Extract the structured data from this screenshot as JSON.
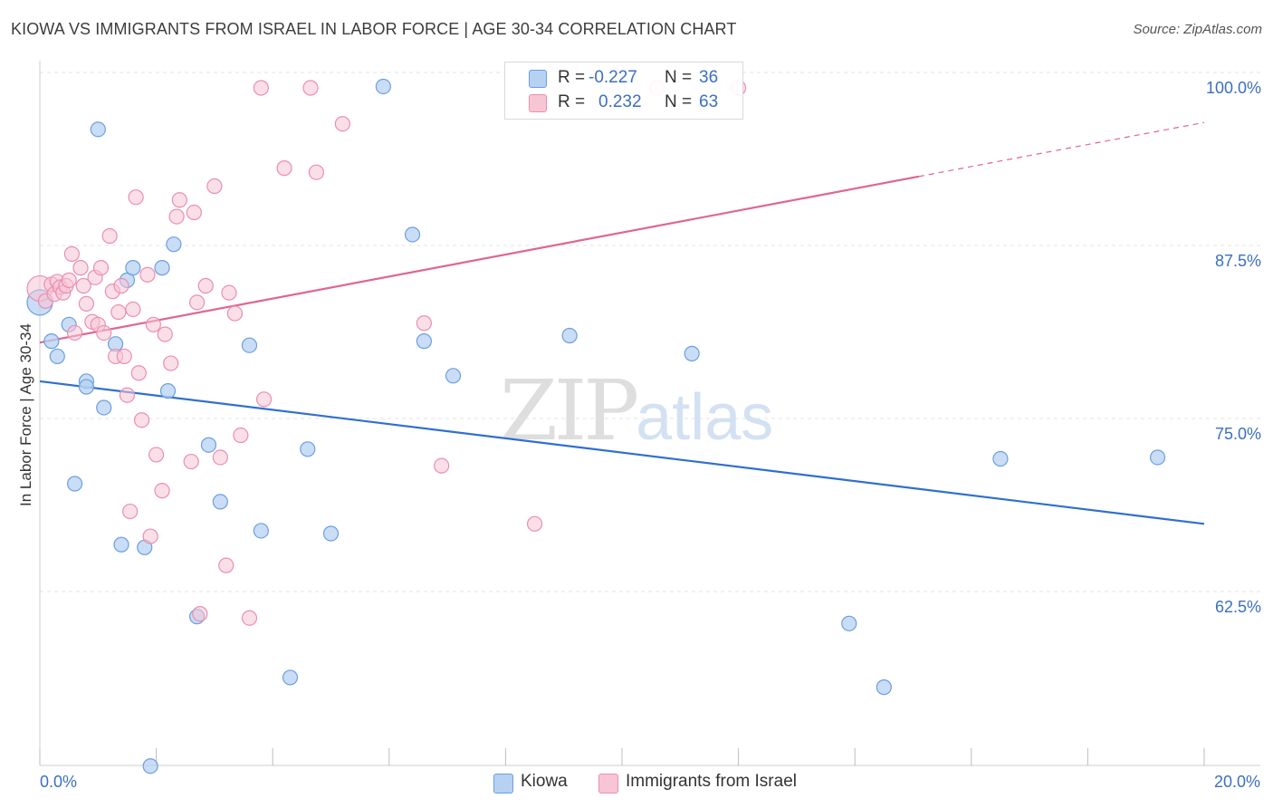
{
  "title": "KIOWA VS IMMIGRANTS FROM ISRAEL IN LABOR FORCE | AGE 30-34 CORRELATION CHART",
  "source": "Source: ZipAtlas.com",
  "watermark": {
    "zip": "ZIP",
    "atlas": "atlas"
  },
  "legend": {
    "kiowa": {
      "r_label": "R = ",
      "r_value": "-0.227",
      "n_label": "N = ",
      "n_value": "36"
    },
    "israel": {
      "r_label": "R = ",
      "r_value": "0.232",
      "n_label": "N = ",
      "n_value": "63"
    }
  },
  "colors": {
    "kiowa_fill": "#b7d1f3",
    "kiowa_stroke": "#6b9fe0",
    "kiowa_line": "#2f6fd0",
    "israel_fill": "#f8c5d5",
    "israel_stroke": "#ea8fae",
    "israel_line": "#e0668f",
    "tick_text": "#3b6fc4",
    "grid": "#e3e3e3"
  },
  "chart_data": {
    "type": "scatter",
    "title": "KIOWA VS IMMIGRANTS FROM ISRAEL IN LABOR FORCE | AGE 30-34 CORRELATION CHART",
    "xlabel": "",
    "ylabel": "In Labor Force | Age 30-34",
    "xlim": [
      0.0,
      20.0
    ],
    "ylim": [
      51.0,
      101.0
    ],
    "x_ticks": [
      "0.0%",
      "20.0%"
    ],
    "y_ticks": [
      {
        "value": 62.5,
        "label": "62.5%"
      },
      {
        "value": 75.0,
        "label": "75.0%"
      },
      {
        "value": 87.5,
        "label": "87.5%"
      },
      {
        "value": 100.0,
        "label": "100.0%"
      }
    ],
    "grid": true,
    "legend_position": "top-center",
    "series": [
      {
        "name": "Kiowa",
        "points": [
          [
            0.2,
            81.7
          ],
          [
            0.3,
            80.6
          ],
          [
            0.5,
            82.9
          ],
          [
            0.6,
            71.4
          ],
          [
            0.8,
            78.8
          ],
          [
            0.8,
            78.4
          ],
          [
            1.0,
            97.0
          ],
          [
            1.1,
            76.9
          ],
          [
            1.3,
            81.5
          ],
          [
            1.4,
            67.0
          ],
          [
            1.5,
            86.1
          ],
          [
            1.6,
            87.0
          ],
          [
            1.8,
            66.8
          ],
          [
            1.9,
            51.0
          ],
          [
            2.1,
            87.0
          ],
          [
            2.2,
            78.1
          ],
          [
            2.3,
            88.7
          ],
          [
            2.7,
            61.8
          ],
          [
            2.9,
            74.2
          ],
          [
            3.1,
            70.1
          ],
          [
            3.6,
            81.4
          ],
          [
            3.8,
            68.0
          ],
          [
            4.3,
            57.4
          ],
          [
            4.6,
            73.9
          ],
          [
            5.0,
            67.8
          ],
          [
            5.9,
            100.1
          ],
          [
            6.4,
            89.4
          ],
          [
            6.6,
            81.7
          ],
          [
            7.1,
            79.2
          ],
          [
            9.1,
            82.1
          ],
          [
            11.2,
            80.8
          ],
          [
            13.9,
            61.3
          ],
          [
            14.5,
            56.7
          ],
          [
            16.5,
            73.2
          ],
          [
            19.2,
            73.3
          ],
          [
            0.0,
            84.5
          ]
        ]
      },
      {
        "name": "Immigrants from Israel",
        "points": [
          [
            0.0,
            85.5
          ],
          [
            0.1,
            84.6
          ],
          [
            0.2,
            85.8
          ],
          [
            0.25,
            85.1
          ],
          [
            0.3,
            86.0
          ],
          [
            0.35,
            85.6
          ],
          [
            0.4,
            85.2
          ],
          [
            0.45,
            85.7
          ],
          [
            0.5,
            86.1
          ],
          [
            0.55,
            88.0
          ],
          [
            0.6,
            82.3
          ],
          [
            0.7,
            87.0
          ],
          [
            0.75,
            85.7
          ],
          [
            0.8,
            84.4
          ],
          [
            0.9,
            83.1
          ],
          [
            0.95,
            86.3
          ],
          [
            1.0,
            82.9
          ],
          [
            1.05,
            87.0
          ],
          [
            1.1,
            82.3
          ],
          [
            1.2,
            89.3
          ],
          [
            1.25,
            85.3
          ],
          [
            1.3,
            80.6
          ],
          [
            1.35,
            83.8
          ],
          [
            1.4,
            85.7
          ],
          [
            1.45,
            80.6
          ],
          [
            1.5,
            77.8
          ],
          [
            1.55,
            69.4
          ],
          [
            1.6,
            84.0
          ],
          [
            1.65,
            92.1
          ],
          [
            1.7,
            79.4
          ],
          [
            1.75,
            76.0
          ],
          [
            1.85,
            86.5
          ],
          [
            1.9,
            67.6
          ],
          [
            1.95,
            82.9
          ],
          [
            2.0,
            73.5
          ],
          [
            2.1,
            70.9
          ],
          [
            2.15,
            82.2
          ],
          [
            2.25,
            80.1
          ],
          [
            2.35,
            90.7
          ],
          [
            2.4,
            91.9
          ],
          [
            2.6,
            73.0
          ],
          [
            2.65,
            91.0
          ],
          [
            2.7,
            84.5
          ],
          [
            2.75,
            62.0
          ],
          [
            2.85,
            85.7
          ],
          [
            3.0,
            92.9
          ],
          [
            3.1,
            73.3
          ],
          [
            3.2,
            65.5
          ],
          [
            3.25,
            85.2
          ],
          [
            3.35,
            83.7
          ],
          [
            3.45,
            74.9
          ],
          [
            3.6,
            61.7
          ],
          [
            3.85,
            77.5
          ],
          [
            3.8,
            100.0
          ],
          [
            4.2,
            94.2
          ],
          [
            4.65,
            100.0
          ],
          [
            4.75,
            93.9
          ],
          [
            5.2,
            97.4
          ],
          [
            6.6,
            83.0
          ],
          [
            6.9,
            72.7
          ],
          [
            8.5,
            68.5
          ],
          [
            10.6,
            100.0
          ],
          [
            12.0,
            100.0
          ]
        ]
      }
    ],
    "trend_lines": [
      {
        "series": "Kiowa",
        "x": [
          0.0,
          20.0
        ],
        "y": [
          78.8,
          68.5
        ]
      },
      {
        "series": "Immigrants from Israel",
        "x": [
          0.0,
          15.1
        ],
        "y": [
          81.6,
          93.6
        ],
        "dashed_extension": {
          "x": [
            15.1,
            20.0
          ],
          "y": [
            93.6,
            97.5
          ]
        }
      }
    ]
  }
}
